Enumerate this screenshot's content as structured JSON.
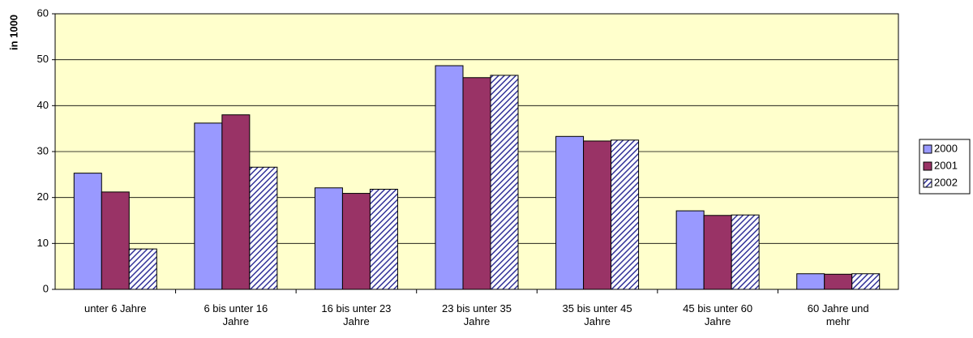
{
  "chart_data": {
    "type": "bar",
    "y_label": "in 1000",
    "categories": [
      "unter 6 Jahre",
      "6 bis unter 16 Jahre",
      "16 bis unter 23 Jahre",
      "23 bis unter 35 Jahre",
      "35 bis unter 45 Jahre",
      "45 bis unter 60 Jahre",
      "60 Jahre und mehr"
    ],
    "series": [
      {
        "name": "2000",
        "color": "#9999ff",
        "values": [
          25.3,
          36.2,
          22.1,
          48.7,
          33.3,
          17.1,
          3.4
        ]
      },
      {
        "name": "2001",
        "color": "#993366",
        "values": [
          21.2,
          38.0,
          20.9,
          46.1,
          32.3,
          16.1,
          3.3
        ]
      },
      {
        "name": "2002",
        "color": "#333399",
        "pattern": "hatch",
        "values": [
          8.8,
          26.6,
          21.8,
          46.6,
          32.5,
          16.2,
          3.4
        ]
      }
    ],
    "ylim": [
      0,
      60
    ],
    "yticks": [
      0,
      10,
      20,
      30,
      40,
      50,
      60
    ],
    "grid": true,
    "plot_background": "#ffffcc",
    "legend": "right"
  }
}
